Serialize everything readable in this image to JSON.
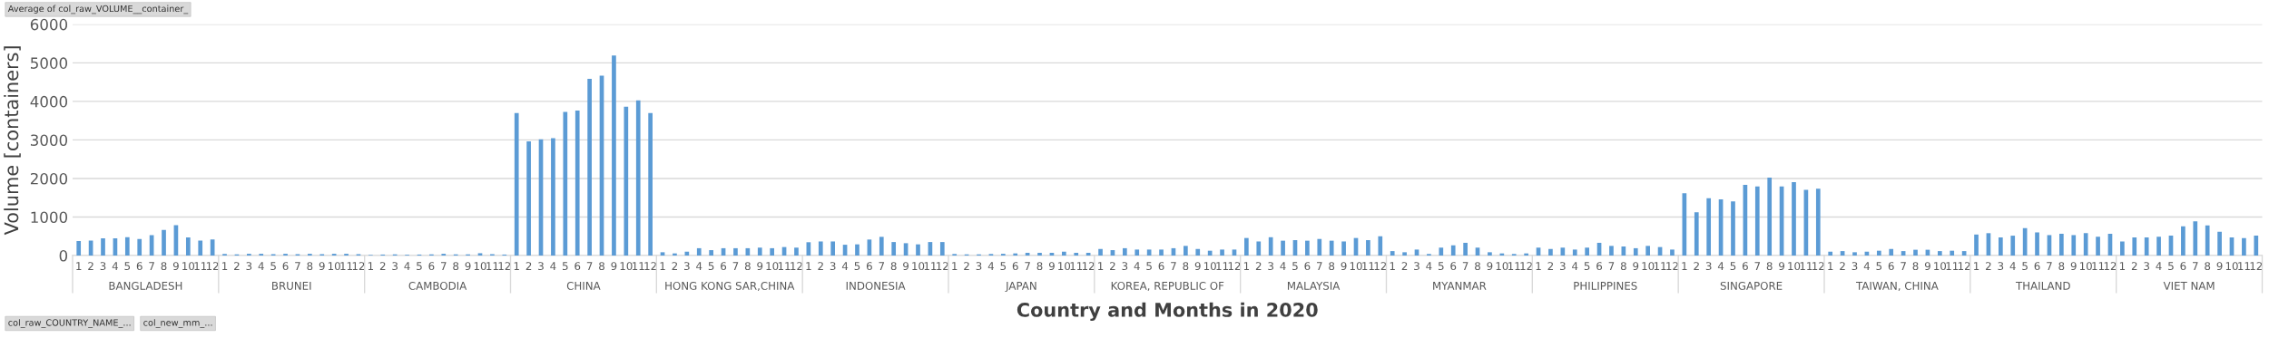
{
  "chart_data": {
    "type": "bar",
    "title": "Average of col_raw_VOLUME__container_",
    "xlabel": "Country and Months in 2020",
    "ylabel": "Volume [containers]",
    "categories": [
      "1",
      "2",
      "3",
      "4",
      "5",
      "6",
      "7",
      "8",
      "9",
      "10",
      "11",
      "12",
      "1",
      "2",
      "3",
      "4",
      "5",
      "6",
      "7",
      "8",
      "9",
      "10",
      "11",
      "12",
      "1",
      "2",
      "3",
      "4",
      "5",
      "6",
      "7",
      "8",
      "9",
      "10",
      "11",
      "12",
      "1",
      "2",
      "3",
      "4",
      "5",
      "6",
      "7",
      "8",
      "9",
      "10",
      "11",
      "12",
      "1",
      "2",
      "3",
      "4",
      "5",
      "6",
      "7",
      "8",
      "9",
      "10",
      "11",
      "12",
      "1",
      "2",
      "3",
      "4",
      "5",
      "6",
      "7",
      "8",
      "9",
      "10",
      "11",
      "12",
      "1",
      "2",
      "3",
      "4",
      "5",
      "6",
      "7",
      "8",
      "9",
      "10",
      "11",
      "12",
      "1",
      "2",
      "3",
      "4",
      "5",
      "6",
      "7",
      "8",
      "9",
      "10",
      "11",
      "12",
      "1",
      "2",
      "3",
      "4",
      "5",
      "6",
      "7",
      "8",
      "9",
      "10",
      "11",
      "12",
      "1",
      "2",
      "3",
      "4",
      "5",
      "6",
      "7",
      "8",
      "9",
      "10",
      "11",
      "12",
      "1",
      "2",
      "3",
      "4",
      "5",
      "6",
      "7",
      "8",
      "9",
      "10",
      "11",
      "12",
      "1",
      "2",
      "3",
      "4",
      "5",
      "6",
      "7",
      "8",
      "9",
      "10",
      "11",
      "12",
      "1",
      "2",
      "3",
      "4",
      "5",
      "6",
      "7",
      "8",
      "9",
      "10",
      "11",
      "12",
      "1",
      "2",
      "3",
      "4",
      "5",
      "6",
      "7",
      "8",
      "9",
      "10",
      "11",
      "12",
      "1",
      "2",
      "3",
      "4",
      "5",
      "6",
      "7",
      "8",
      "9",
      "10",
      "11",
      "12"
    ],
    "values": [
      375,
      390,
      445,
      445,
      475,
      430,
      530,
      665,
      790,
      470,
      390,
      415,
      40,
      30,
      45,
      45,
      35,
      45,
      35,
      45,
      35,
      45,
      45,
      35,
      15,
      25,
      30,
      20,
      25,
      30,
      45,
      30,
      30,
      60,
      35,
      25,
      3695,
      2960,
      3015,
      3045,
      3725,
      3760,
      4585,
      4665,
      5190,
      3860,
      4025,
      3695,
      85,
      55,
      100,
      190,
      140,
      190,
      190,
      190,
      205,
      190,
      220,
      205,
      345,
      365,
      365,
      280,
      290,
      415,
      485,
      350,
      320,
      290,
      350,
      350,
      40,
      30,
      30,
      40,
      45,
      55,
      70,
      70,
      70,
      100,
      70,
      70,
      170,
      140,
      190,
      155,
      155,
      155,
      190,
      250,
      170,
      125,
      155,
      155,
      455,
      365,
      475,
      385,
      400,
      385,
      430,
      385,
      365,
      455,
      400,
      500,
      115,
      85,
      155,
      40,
      205,
      265,
      330,
      205,
      85,
      55,
      40,
      55,
      205,
      170,
      205,
      155,
      205,
      330,
      250,
      235,
      190,
      250,
      220,
      155,
      1615,
      1125,
      1485,
      1460,
      1405,
      1835,
      1790,
      2025,
      1790,
      1905,
      1705,
      1735,
      100,
      115,
      85,
      100,
      125,
      170,
      115,
      150,
      150,
      115,
      125,
      115,
      545,
      580,
      470,
      515,
      710,
      600,
      530,
      565,
      530,
      580,
      485,
      565,
      365,
      470,
      470,
      485,
      515,
      760,
      885,
      780,
      615,
      470,
      455,
      515
    ],
    "color": "#5b9bd5",
    "ylim": [
      0,
      6000
    ],
    "yticks": [
      0,
      1000,
      2000,
      3000,
      4000,
      5000,
      6000
    ],
    "grid": "y",
    "annotations": [
      "BANGLADESH",
      "BRUNEI",
      "CAMBODIA",
      "CHINA",
      "HONG KONG SAR,CHINA",
      "INDONESIA",
      "JAPAN",
      "KOREA, REPUBLIC OF",
      "MALAYSIA",
      "MYANMAR",
      "PHILIPPINES",
      "SINGAPORE",
      "TAIWAN, CHINA",
      "THAILAND",
      "VIET NAM",
      "col_raw_COUNTRY_NAME_...",
      "col_new_mm_..."
    ]
  }
}
